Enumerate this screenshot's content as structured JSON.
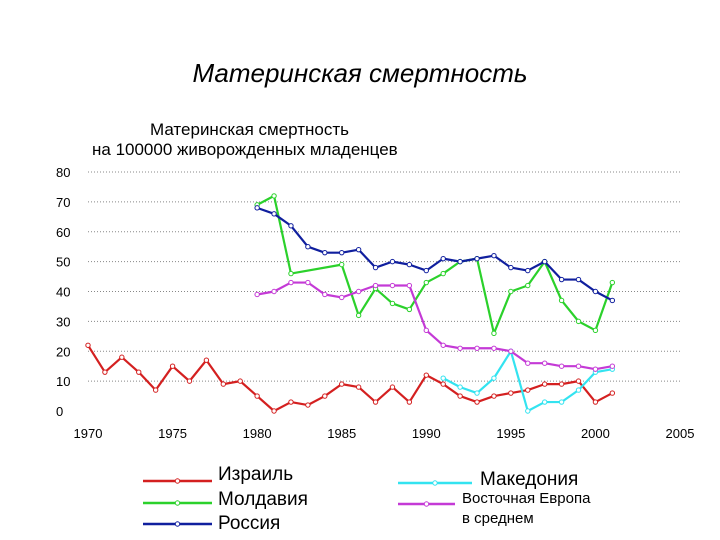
{
  "slide_title": "Материнская смертность",
  "figure_title": {
    "line1": "Материнская смертность",
    "line2": "на 100000 живорожденных младенцев"
  },
  "colors": {
    "Израиль": "#d42020",
    "Молдавия": "#2bd12b",
    "Россия": "#101f9e",
    "Македония": "#33e3f0",
    "Восточная Европа в среднем": "#c43ad6",
    "grid": "#888888"
  },
  "chart_data": {
    "type": "line",
    "xlim": [
      1970,
      2005
    ],
    "ylim": [
      0,
      80
    ],
    "x_ticks": [
      1970,
      1975,
      1980,
      1985,
      1990,
      1995,
      2000,
      2005
    ],
    "y_ticks": [
      0,
      10,
      20,
      30,
      40,
      50,
      60,
      70,
      80
    ],
    "grid": "horizontal dotted",
    "legend": "bottom",
    "series": [
      {
        "name": "Израиль",
        "x": [
          1970,
          1971,
          1972,
          1973,
          1974,
          1975,
          1976,
          1977,
          1978,
          1979,
          1980,
          1981,
          1982,
          1983,
          1984,
          1985,
          1986,
          1987,
          1988,
          1989,
          1990,
          1991,
          1992,
          1993,
          1994,
          1995,
          1996,
          1997,
          1998,
          1999,
          2000,
          2001
        ],
        "values": [
          22,
          13,
          18,
          13,
          7,
          15,
          10,
          17,
          9,
          10,
          5,
          0,
          3,
          2,
          5,
          9,
          8,
          3,
          8,
          3,
          12,
          9,
          5,
          3,
          5,
          6,
          7,
          9,
          9,
          10,
          3,
          6
        ]
      },
      {
        "name": "Молдавия",
        "x": [
          1980,
          1981,
          1982,
          1985,
          1986,
          1987,
          1988,
          1989,
          1990,
          1991,
          1992,
          1993,
          1994,
          1995,
          1996,
          1997,
          1998,
          1999,
          2000,
          2001
        ],
        "values": [
          69,
          72,
          46,
          49,
          32,
          41,
          36,
          34,
          43,
          46,
          50,
          51,
          26,
          40,
          42,
          50,
          37,
          30,
          27,
          43
        ]
      },
      {
        "name": "Россия",
        "x": [
          1980,
          1981,
          1982,
          1983,
          1984,
          1985,
          1986,
          1987,
          1988,
          1989,
          1990,
          1991,
          1992,
          1993,
          1994,
          1995,
          1996,
          1997,
          1998,
          1999,
          2000,
          2001
        ],
        "values": [
          68,
          66,
          62,
          55,
          53,
          53,
          54,
          48,
          50,
          49,
          47,
          51,
          50,
          51,
          52,
          48,
          47,
          50,
          44,
          44,
          40,
          37
        ]
      },
      {
        "name": "Македония",
        "x": [
          1991,
          1992,
          1993,
          1994,
          1995,
          1996,
          1997,
          1998,
          1999,
          2000,
          2001
        ],
        "values": [
          11,
          8,
          6,
          11,
          20,
          0,
          3,
          3,
          7,
          13,
          14
        ]
      },
      {
        "name": "Восточная Европа в среднем",
        "x": [
          1980,
          1981,
          1982,
          1983,
          1984,
          1985,
          1986,
          1987,
          1988,
          1989,
          1990,
          1991,
          1992,
          1993,
          1994,
          1995,
          1996,
          1997,
          1998,
          1999,
          2000,
          2001
        ],
        "values": [
          39,
          40,
          43,
          43,
          39,
          38,
          40,
          42,
          42,
          42,
          27,
          22,
          21,
          21,
          21,
          20,
          16,
          16,
          15,
          15,
          14,
          15
        ]
      }
    ]
  },
  "legend": [
    {
      "label": "Израиль",
      "color": "#d42020"
    },
    {
      "label": "Молдавия",
      "color": "#2bd12b"
    },
    {
      "label": "Россия",
      "color": "#101f9e"
    },
    {
      "label": "Македония",
      "color": "#33e3f0"
    },
    {
      "label": "Восточная Европа",
      "label2": "в среднем",
      "color": "#c43ad6"
    }
  ]
}
